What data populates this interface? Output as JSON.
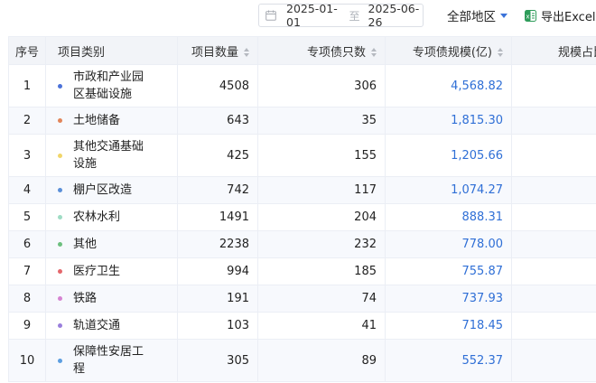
{
  "toolbar": {
    "date_start": "2025-01-01",
    "date_sep": "至",
    "date_end": "2025-06-26",
    "region": "全部地区",
    "export": "导出Excel"
  },
  "table": {
    "headers": {
      "idx": "序号",
      "category": "项目类别",
      "count": "项目数量",
      "bonds": "专项债只数",
      "scale": "专项债规模(亿)",
      "share": "规模占比"
    },
    "rows": [
      {
        "idx": "1",
        "category": "市政和产业园区基础设施",
        "color": "#4c72d9",
        "count": "4508",
        "bonds": "306",
        "scale": "4,568.82"
      },
      {
        "idx": "2",
        "category": "土地储备",
        "color": "#e2855a",
        "count": "643",
        "bonds": "35",
        "scale": "1,815.30"
      },
      {
        "idx": "3",
        "category": "其他交通基础设施",
        "color": "#f1d66a",
        "count": "425",
        "bonds": "155",
        "scale": "1,205.66"
      },
      {
        "idx": "4",
        "category": "棚户区改造",
        "color": "#5b8fd8",
        "count": "742",
        "bonds": "117",
        "scale": "1,074.27"
      },
      {
        "idx": "5",
        "category": "农林水利",
        "color": "#9fdcc4",
        "count": "1491",
        "bonds": "204",
        "scale": "888.31"
      },
      {
        "idx": "6",
        "category": "其他",
        "color": "#6cbf7e",
        "count": "2238",
        "bonds": "232",
        "scale": "778.00"
      },
      {
        "idx": "7",
        "category": "医疗卫生",
        "color": "#e4676c",
        "count": "994",
        "bonds": "185",
        "scale": "755.87"
      },
      {
        "idx": "8",
        "category": "铁路",
        "color": "#d684d2",
        "count": "191",
        "bonds": "74",
        "scale": "737.93"
      },
      {
        "idx": "9",
        "category": "轨道交通",
        "color": "#9a7fdc",
        "count": "103",
        "bonds": "41",
        "scale": "718.45"
      },
      {
        "idx": "10",
        "category": "保障性安居工程",
        "color": "#5c9ee0",
        "count": "305",
        "bonds": "89",
        "scale": "552.37"
      }
    ]
  },
  "colors": {
    "accent": "#2f6fd6",
    "header_bg": "#f2f4f8",
    "stripe": "#f7f9fd",
    "border": "#ebeef5"
  }
}
